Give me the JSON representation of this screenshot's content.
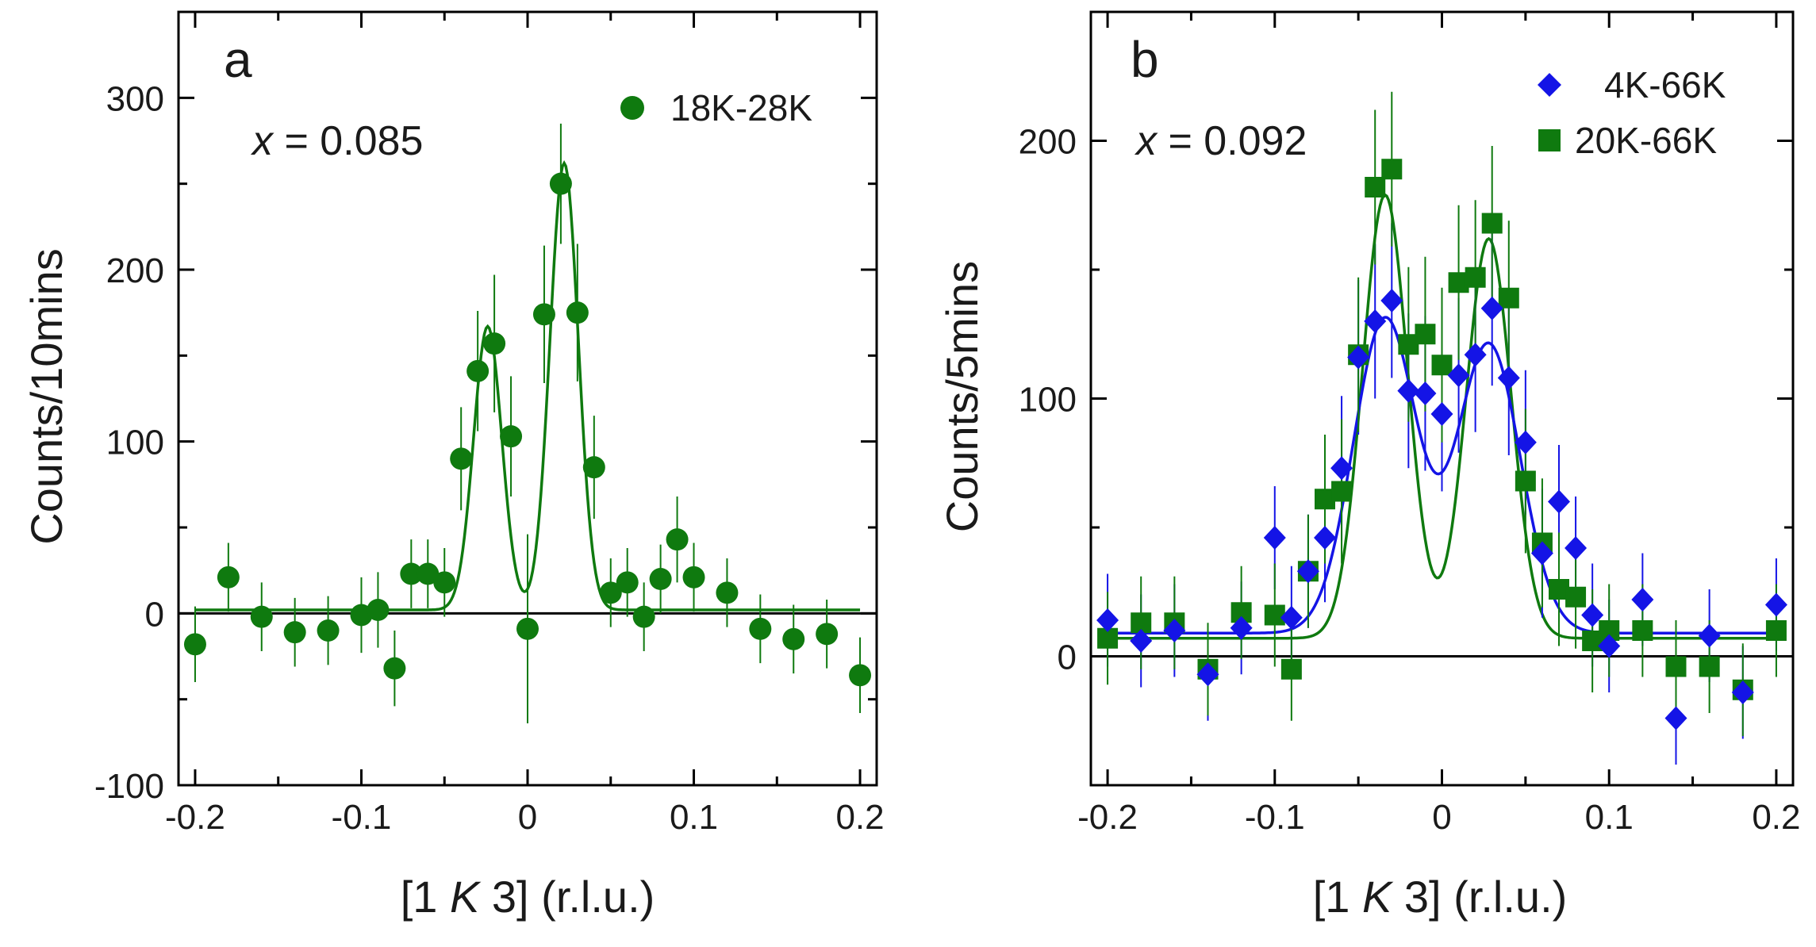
{
  "chart_data": [
    {
      "type": "scatter",
      "panel_label": "a",
      "annotation": {
        "variable": "x",
        "text": " = 0.085"
      },
      "xlabel": {
        "prefix": "[1 ",
        "italic": "K",
        "suffix": " 3] (r.l.u.)"
      },
      "ylabel": "Counts/10mins",
      "xlim": [
        -0.21,
        0.21
      ],
      "ylim": [
        -100,
        350
      ],
      "xticks": [
        -0.2,
        -0.1,
        0,
        0.1,
        0.2
      ],
      "xtick_labels": [
        "-0.2",
        "-0.1",
        "0",
        "0.1",
        "0.2"
      ],
      "yticks": [
        -100,
        0,
        100,
        200,
        300
      ],
      "ytick_labels": [
        "-100",
        "0",
        "100",
        "200",
        "300"
      ],
      "minor_yticks": [
        -50,
        50,
        150,
        250
      ],
      "zero_line": true,
      "grid": false,
      "legend_position": "top-right",
      "series": [
        {
          "name": "18K-28K",
          "marker": "circle",
          "color": "#0f7a0f",
          "x": [
            -0.2,
            -0.18,
            -0.16,
            -0.14,
            -0.12,
            -0.1,
            -0.09,
            -0.08,
            -0.07,
            -0.06,
            -0.05,
            -0.04,
            -0.03,
            -0.02,
            -0.01,
            0,
            0.01,
            0.02,
            0.03,
            0.04,
            0.05,
            0.06,
            0.07,
            0.08,
            0.09,
            0.1,
            0.12,
            0.14,
            0.16,
            0.18,
            0.2
          ],
          "y": [
            -18,
            21,
            -2,
            -11,
            -10,
            -1,
            2,
            -32,
            23,
            23,
            18,
            90,
            141,
            157,
            103,
            -9,
            174,
            250,
            175,
            85,
            12,
            18,
            -2,
            20,
            43,
            21,
            12,
            -9,
            -15,
            -12,
            -36
          ],
          "err": [
            22,
            20,
            20,
            20,
            20,
            22,
            22,
            22,
            20,
            20,
            20,
            30,
            35,
            40,
            35,
            55,
            40,
            35,
            40,
            30,
            20,
            20,
            20,
            20,
            25,
            20,
            20,
            20,
            20,
            20,
            22
          ]
        }
      ],
      "fits": [
        {
          "color": "#0f7a0f",
          "baseline": 2,
          "gaussians": [
            {
              "amplitude": 165,
              "center": -0.024,
              "sigma": 0.0085
            },
            {
              "amplitude": 260,
              "center": 0.022,
              "sigma": 0.0085
            }
          ]
        }
      ]
    },
    {
      "type": "scatter",
      "panel_label": "b",
      "annotation": {
        "variable": "x",
        "text": " = 0.092"
      },
      "xlabel": {
        "prefix": "[1 ",
        "italic": "K",
        "suffix": " 3] (r.l.u.)"
      },
      "ylabel": "Counts/5mins",
      "xlim": [
        -0.21,
        0.21
      ],
      "ylim": [
        -50,
        250
      ],
      "xticks": [
        -0.2,
        -0.1,
        0,
        0.1,
        0.2
      ],
      "xtick_labels": [
        "-0.2",
        "-0.1",
        "0",
        "0.1",
        "0.2"
      ],
      "yticks": [
        0,
        100,
        200
      ],
      "ytick_labels": [
        "0",
        "100",
        "200"
      ],
      "minor_yticks": [
        -50,
        50,
        150,
        250
      ],
      "zero_line": true,
      "grid": false,
      "legend_position": "top-right",
      "series": [
        {
          "name": "4K-66K",
          "marker": "diamond",
          "color": "#1414e6",
          "x": [
            -0.2,
            -0.18,
            -0.16,
            -0.14,
            -0.12,
            -0.1,
            -0.09,
            -0.08,
            -0.07,
            -0.06,
            -0.05,
            -0.04,
            -0.03,
            -0.02,
            -0.01,
            0,
            0.01,
            0.02,
            0.03,
            0.04,
            0.05,
            0.06,
            0.07,
            0.08,
            0.09,
            0.1,
            0.12,
            0.14,
            0.16,
            0.18,
            0.2
          ],
          "y": [
            14,
            6,
            10,
            -7,
            11,
            46,
            15,
            33,
            46,
            73,
            116,
            130,
            138,
            103,
            102,
            94,
            109,
            117,
            135,
            108,
            83,
            40,
            60,
            42,
            16,
            4,
            22,
            -24,
            8,
            -14,
            20
          ],
          "err": [
            18,
            18,
            18,
            18,
            18,
            20,
            20,
            22,
            25,
            28,
            30,
            30,
            30,
            30,
            30,
            30,
            30,
            30,
            30,
            30,
            28,
            25,
            22,
            20,
            20,
            18,
            18,
            18,
            18,
            18,
            18
          ]
        },
        {
          "name": "20K-66K",
          "marker": "square",
          "color": "#0f7a0f",
          "x": [
            -0.2,
            -0.18,
            -0.16,
            -0.14,
            -0.12,
            -0.1,
            -0.09,
            -0.08,
            -0.07,
            -0.06,
            -0.05,
            -0.04,
            -0.03,
            -0.02,
            -0.01,
            0,
            0.01,
            0.02,
            0.03,
            0.04,
            0.05,
            0.06,
            0.07,
            0.08,
            0.09,
            0.1,
            0.12,
            0.14,
            0.16,
            0.18,
            0.2
          ],
          "y": [
            7,
            13,
            13,
            -5,
            17,
            16,
            -5,
            33,
            61,
            64,
            117,
            182,
            189,
            121,
            125,
            113,
            145,
            147,
            168,
            139,
            68,
            44,
            26,
            23,
            6,
            10,
            10,
            -4,
            -4,
            -13,
            10
          ],
          "err": [
            18,
            18,
            18,
            18,
            18,
            20,
            20,
            22,
            25,
            28,
            30,
            30,
            30,
            30,
            30,
            30,
            30,
            30,
            30,
            30,
            28,
            25,
            22,
            20,
            20,
            18,
            18,
            18,
            18,
            18,
            18
          ]
        }
      ],
      "fits": [
        {
          "color": "#0f7a0f",
          "baseline": 7,
          "gaussians": [
            {
              "amplitude": 172,
              "center": -0.034,
              "sigma": 0.0135
            },
            {
              "amplitude": 155,
              "center": 0.028,
              "sigma": 0.0135
            }
          ]
        },
        {
          "color": "#1414e6",
          "baseline": 9,
          "gaussians": [
            {
              "amplitude": 122,
              "center": -0.034,
              "sigma": 0.019
            },
            {
              "amplitude": 112,
              "center": 0.028,
              "sigma": 0.019
            }
          ]
        }
      ]
    }
  ]
}
